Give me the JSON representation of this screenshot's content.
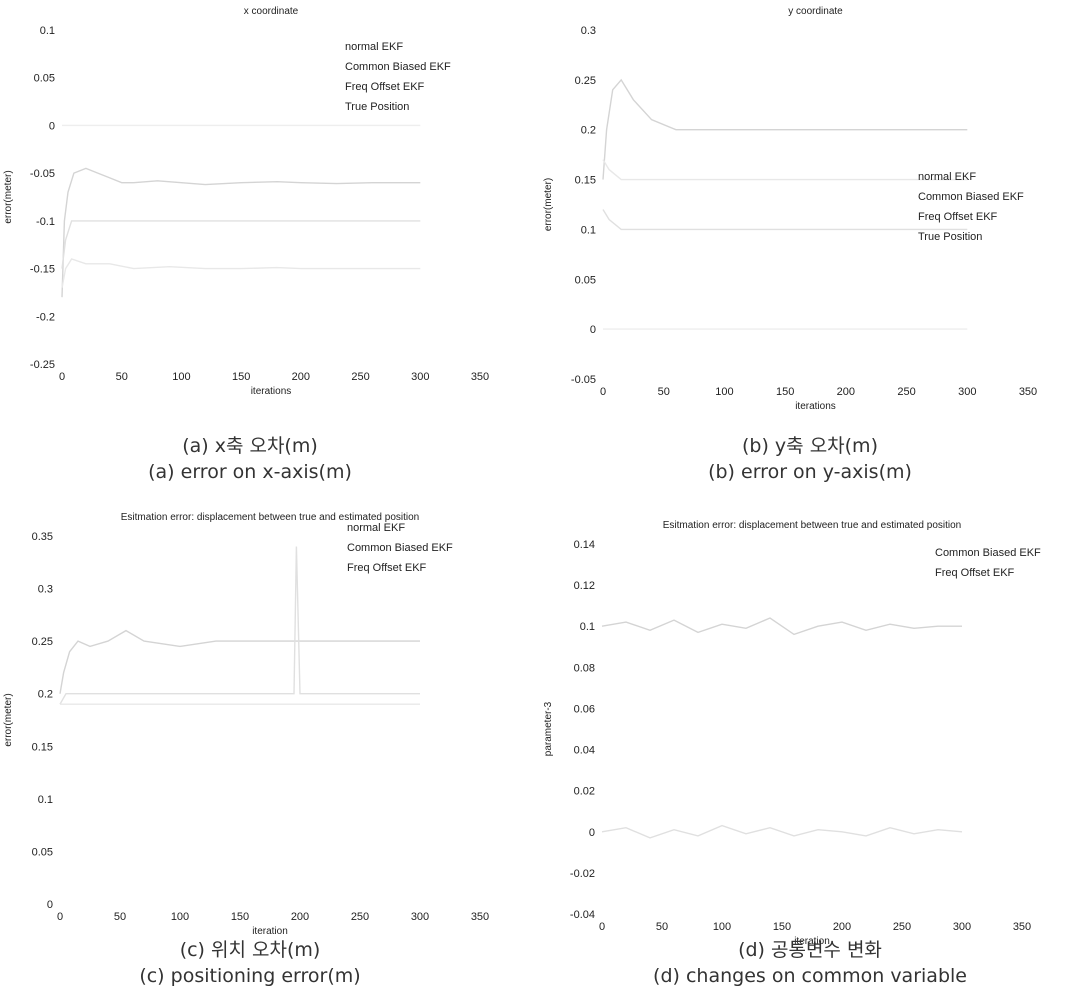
{
  "chart_data": [
    {
      "type": "line",
      "title": "x coordinate",
      "xlabel": "iterations",
      "ylabel": "error(meter)",
      "xlim": [
        0,
        350
      ],
      "ylim": [
        -0.25,
        0.1
      ],
      "xticks": [
        0,
        50,
        100,
        150,
        200,
        250,
        300,
        350
      ],
      "yticks": [
        -0.25,
        -0.2,
        -0.15,
        -0.1,
        -0.05,
        0,
        0.05,
        0.1
      ],
      "xticklabels": [
        "0",
        "50",
        "100",
        "150",
        "200",
        "250",
        "300",
        "350"
      ],
      "yticklabels": [
        "-0.25",
        "-0.2",
        "-0.15",
        "-0.1",
        "-0.05",
        "0",
        "0.05",
        "0.1"
      ],
      "legend": [
        "normal EKF",
        "Common Biased EKF",
        "Freq Offset EKF",
        "True Position"
      ],
      "legend_position": "top-right",
      "grid": false,
      "series": [
        {
          "name": "normal EKF",
          "x": [
            0,
            2,
            5,
            10,
            20,
            30,
            40,
            50,
            60,
            80,
            100,
            120,
            150,
            180,
            200,
            230,
            260,
            300
          ],
          "y": [
            -0.18,
            -0.1,
            -0.07,
            -0.05,
            -0.045,
            -0.05,
            -0.055,
            -0.06,
            -0.06,
            -0.058,
            -0.06,
            -0.062,
            -0.06,
            -0.059,
            -0.06,
            -0.061,
            -0.06,
            -0.06
          ]
        },
        {
          "name": "Common Biased EKF",
          "x": [
            0,
            3,
            8,
            20,
            40,
            60,
            90,
            120,
            150,
            180,
            200,
            230,
            260,
            300
          ],
          "y": [
            -0.15,
            -0.12,
            -0.1,
            -0.1,
            -0.1,
            -0.1,
            -0.1,
            -0.1,
            -0.1,
            -0.1,
            -0.1,
            -0.1,
            -0.1,
            -0.1
          ]
        },
        {
          "name": "Freq Offset EKF",
          "x": [
            0,
            3,
            8,
            20,
            40,
            60,
            90,
            120,
            150,
            180,
            200,
            230,
            260,
            300
          ],
          "y": [
            -0.17,
            -0.15,
            -0.14,
            -0.145,
            -0.145,
            -0.15,
            -0.148,
            -0.15,
            -0.15,
            -0.149,
            -0.15,
            -0.15,
            -0.15,
            -0.15
          ]
        },
        {
          "name": "True Position",
          "x": [
            0,
            300
          ],
          "y": [
            0,
            0
          ]
        }
      ]
    },
    {
      "type": "line",
      "title": "y coordinate",
      "xlabel": "iterations",
      "ylabel": "error(meter)",
      "xlim": [
        0,
        350
      ],
      "ylim": [
        -0.05,
        0.3
      ],
      "xticks": [
        0,
        50,
        100,
        150,
        200,
        250,
        300,
        350
      ],
      "yticks": [
        -0.05,
        0,
        0.05,
        0.1,
        0.15,
        0.2,
        0.25,
        0.3
      ],
      "xticklabels": [
        "0",
        "50",
        "100",
        "150",
        "200",
        "250",
        "300",
        "350"
      ],
      "yticklabels": [
        "-0.05",
        "0",
        "0.05",
        "0.1",
        "0.15",
        "0.2",
        "0.25",
        "0.3"
      ],
      "legend": [
        "normal EKF",
        "Common Biased EKF",
        "Freq Offset EKF",
        "True Position"
      ],
      "legend_position": "right",
      "grid": false,
      "series": [
        {
          "name": "normal EKF",
          "x": [
            0,
            3,
            8,
            15,
            25,
            40,
            60,
            80,
            100,
            130,
            160,
            200,
            240,
            280,
            300
          ],
          "y": [
            0.15,
            0.2,
            0.24,
            0.25,
            0.23,
            0.21,
            0.2,
            0.2,
            0.2,
            0.2,
            0.2,
            0.2,
            0.2,
            0.2,
            0.2
          ]
        },
        {
          "name": "Common Biased EKF",
          "x": [
            0,
            5,
            15,
            30,
            60,
            100,
            150,
            200,
            250,
            300
          ],
          "y": [
            0.12,
            0.11,
            0.1,
            0.1,
            0.1,
            0.1,
            0.1,
            0.1,
            0.1,
            0.1
          ]
        },
        {
          "name": "Freq Offset EKF",
          "x": [
            0,
            5,
            15,
            30,
            60,
            100,
            150,
            200,
            250,
            300
          ],
          "y": [
            0.17,
            0.16,
            0.15,
            0.15,
            0.15,
            0.15,
            0.15,
            0.15,
            0.15,
            0.15
          ]
        },
        {
          "name": "True Position",
          "x": [
            0,
            300
          ],
          "y": [
            0,
            0
          ]
        }
      ]
    },
    {
      "type": "line",
      "title": "Esitmation error: displacement between true and estimated position",
      "xlabel": "iteration",
      "ylabel": "error(meter)",
      "xlim": [
        0,
        350
      ],
      "ylim": [
        0,
        0.35
      ],
      "xticks": [
        0,
        50,
        100,
        150,
        200,
        250,
        300,
        350
      ],
      "yticks": [
        0,
        0.05,
        0.1,
        0.15,
        0.2,
        0.25,
        0.3,
        0.35
      ],
      "xticklabels": [
        "0",
        "50",
        "100",
        "150",
        "200",
        "250",
        "300",
        "350"
      ],
      "yticklabels": [
        "0",
        "0.05",
        "0.1",
        "0.15",
        "0.2",
        "0.25",
        "0.3",
        "0.35"
      ],
      "legend": [
        "normal EKF",
        "Common Biased EKF",
        "Freq Offset EKF"
      ],
      "legend_position": "top-right",
      "grid": false,
      "series": [
        {
          "name": "normal EKF",
          "x": [
            0,
            3,
            8,
            15,
            25,
            40,
            55,
            70,
            100,
            130,
            160,
            200,
            240,
            280,
            300
          ],
          "y": [
            0.2,
            0.22,
            0.24,
            0.25,
            0.245,
            0.25,
            0.26,
            0.25,
            0.245,
            0.25,
            0.25,
            0.25,
            0.25,
            0.25,
            0.25
          ]
        },
        {
          "name": "Common Biased EKF",
          "x": [
            0,
            5,
            15,
            30,
            60,
            100,
            150,
            195,
            197,
            200,
            250,
            300
          ],
          "y": [
            0.19,
            0.2,
            0.2,
            0.2,
            0.2,
            0.2,
            0.2,
            0.2,
            0.34,
            0.2,
            0.2,
            0.2
          ]
        },
        {
          "name": "Freq Offset EKF",
          "x": [
            0,
            5,
            15,
            30,
            60,
            100,
            150,
            200,
            250,
            300
          ],
          "y": [
            0.19,
            0.19,
            0.19,
            0.19,
            0.19,
            0.19,
            0.19,
            0.19,
            0.19,
            0.19
          ]
        }
      ]
    },
    {
      "type": "line",
      "title": "Esitmation error: displacement between true and estimated position",
      "xlabel": "iteration",
      "ylabel": "parameter-3",
      "xlim": [
        0,
        350
      ],
      "ylim": [
        -0.04,
        0.14
      ],
      "xticks": [
        0,
        50,
        100,
        150,
        200,
        250,
        300,
        350
      ],
      "yticks": [
        -0.04,
        -0.02,
        0,
        0.02,
        0.04,
        0.06,
        0.08,
        0.1,
        0.12,
        0.14
      ],
      "xticklabels": [
        "0",
        "50",
        "100",
        "150",
        "200",
        "250",
        "300",
        "350"
      ],
      "yticklabels": [
        "-0.04",
        "-0.02",
        "0",
        "0.02",
        "0.04",
        "0.06",
        "0.08",
        "0.1",
        "0.12",
        "0.14"
      ],
      "legend": [
        "Common Biased EKF",
        "Freq Offset EKF"
      ],
      "legend_position": "top-right",
      "grid": false,
      "series": [
        {
          "name": "Common Biased EKF",
          "x": [
            0,
            20,
            40,
            60,
            80,
            100,
            120,
            140,
            160,
            180,
            200,
            220,
            240,
            260,
            280,
            300
          ],
          "y": [
            0.1,
            0.102,
            0.098,
            0.103,
            0.097,
            0.101,
            0.099,
            0.104,
            0.096,
            0.1,
            0.102,
            0.098,
            0.101,
            0.099,
            0.1,
            0.1
          ]
        },
        {
          "name": "Freq Offset EKF",
          "x": [
            0,
            20,
            40,
            60,
            80,
            100,
            120,
            140,
            160,
            180,
            200,
            220,
            240,
            260,
            280,
            300
          ],
          "y": [
            0.0,
            0.002,
            -0.003,
            0.001,
            -0.002,
            0.003,
            -0.001,
            0.002,
            -0.002,
            0.001,
            0.0,
            -0.002,
            0.002,
            -0.001,
            0.001,
            0.0
          ]
        }
      ]
    }
  ],
  "captions": [
    {
      "ko": "(a) x축 오차(m)",
      "en": "(a) error on x-axis(m)"
    },
    {
      "ko": "(b) y축 오차(m)",
      "en": "(b) error on y-axis(m)"
    },
    {
      "ko": "(c) 위치 오차(m)",
      "en": "(c) positioning error(m)"
    },
    {
      "ko": "(d) 공통변수 변화",
      "en": "(d) changes on common variable"
    }
  ],
  "colors": {
    "series": [
      "#d4d4d4",
      "#e0e0e0",
      "#e8e8e8",
      "#eeeeee"
    ],
    "text": "#222222"
  }
}
